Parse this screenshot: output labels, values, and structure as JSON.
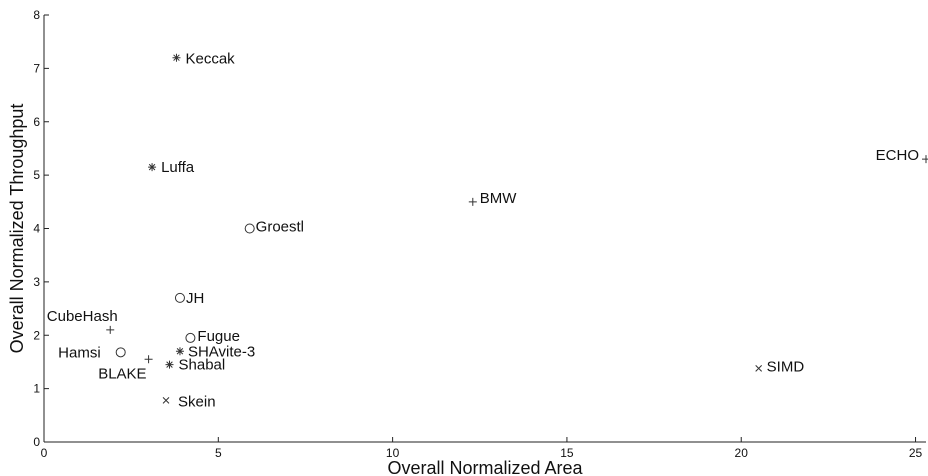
{
  "chart_data": {
    "type": "scatter",
    "title": "",
    "xlabel": "Overall Normalized Area",
    "ylabel": "Overall Normalized Throughput",
    "xlim": [
      0,
      25.3
    ],
    "ylim": [
      0,
      8
    ],
    "xticks": [
      0,
      5,
      10,
      15,
      20,
      25
    ],
    "yticks": [
      0,
      1,
      2,
      3,
      4,
      5,
      6,
      7,
      8
    ],
    "grid": false,
    "points": [
      {
        "label": "Keccak",
        "x": 3.8,
        "y": 7.2,
        "marker": "star"
      },
      {
        "label": "Luffa",
        "x": 3.1,
        "y": 5.15,
        "marker": "star"
      },
      {
        "label": "ECHO",
        "x": 25.3,
        "y": 5.3,
        "marker": "plus"
      },
      {
        "label": "BMW",
        "x": 12.3,
        "y": 4.5,
        "marker": "plus"
      },
      {
        "label": "Groestl",
        "x": 5.9,
        "y": 4.0,
        "marker": "circle"
      },
      {
        "label": "JH",
        "x": 3.9,
        "y": 2.7,
        "marker": "circle"
      },
      {
        "label": "CubeHash",
        "x": 1.9,
        "y": 2.1,
        "marker": "plus"
      },
      {
        "label": "Fugue",
        "x": 4.2,
        "y": 1.95,
        "marker": "circle"
      },
      {
        "label": "Hamsi",
        "x": 2.2,
        "y": 1.68,
        "marker": "circle"
      },
      {
        "label": "SHAvite-3",
        "x": 3.9,
        "y": 1.7,
        "marker": "star"
      },
      {
        "label": "BLAKE",
        "x": 3.0,
        "y": 1.55,
        "marker": "plus"
      },
      {
        "label": "Shabal",
        "x": 3.6,
        "y": 1.45,
        "marker": "star"
      },
      {
        "label": "SIMD",
        "x": 20.5,
        "y": 1.38,
        "marker": "cross"
      },
      {
        "label": "Skein",
        "x": 3.5,
        "y": 0.78,
        "marker": "cross"
      }
    ]
  }
}
